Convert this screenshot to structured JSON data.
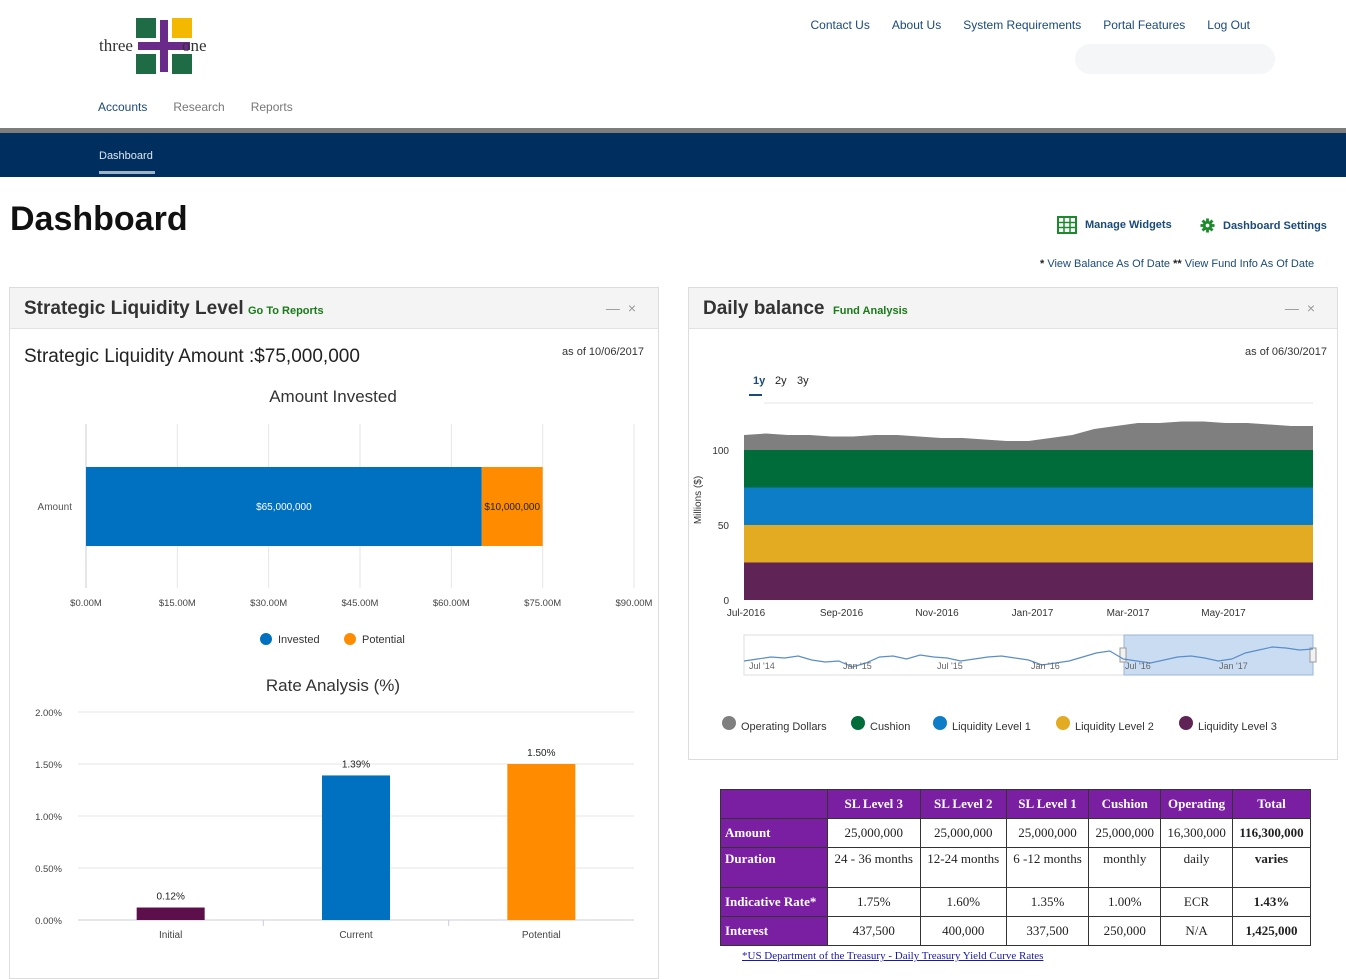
{
  "header": {
    "logo_left": "three",
    "logo_right": "one",
    "top_links": [
      "Contact Us",
      "About Us",
      "System Requirements",
      "Portal Features",
      "Log Out"
    ],
    "sub_nav": [
      "Accounts",
      "Research",
      "Reports"
    ],
    "tab": "Dashboard"
  },
  "page": {
    "title": "Dashboard",
    "manage_widgets": "Manage Widgets",
    "dashboard_settings": "Dashboard Settings",
    "view_balance_star": "*",
    "view_balance": "View Balance As Of Date",
    "view_fund_star": "**",
    "view_fund": "View Fund Info As Of Date"
  },
  "colors": {
    "navy": "#002f5f",
    "invested": "#0070c0",
    "potential": "#ff8c00",
    "initial": "#5c0f4a",
    "purple": "#7a1fa2",
    "operating": "#7f7f7f",
    "cushion": "#006c3a",
    "l1": "#0d7dc8",
    "l2": "#e3ab21",
    "l3": "#5f2455"
  },
  "left_panel": {
    "title": "Strategic Liquidity Level",
    "link": "Go To Reports",
    "amount_label": "Strategic Liquidity Amount :$75,000,000",
    "as_of": "as of 10/06/2017"
  },
  "right_panel": {
    "title": "Daily balance",
    "link": "Fund Analysis",
    "as_of": "as of 06/30/2017",
    "ranges": [
      "1y",
      "2y",
      "3y"
    ],
    "active_range": "1y"
  },
  "chart_data": [
    {
      "type": "bar",
      "orientation": "horizontal-stacked",
      "title": "Amount Invested",
      "categories": [
        "Amount"
      ],
      "series": [
        {
          "name": "Invested",
          "values": [
            65000000
          ],
          "label": "$65,000,000"
        },
        {
          "name": "Potential",
          "values": [
            10000000
          ],
          "label": "$10,000,000"
        }
      ],
      "xlim": [
        0,
        90000000
      ],
      "xticks": [
        "$0.00M",
        "$15.00M",
        "$30.00M",
        "$45.00M",
        "$60.00M",
        "$75.00M",
        "$90.00M"
      ],
      "legend": "bottom"
    },
    {
      "type": "bar",
      "title": "Rate Analysis (%)",
      "categories": [
        "Initial",
        "Current",
        "Potential"
      ],
      "values": [
        0.12,
        1.39,
        1.5
      ],
      "value_labels": [
        "0.12%",
        "1.39%",
        "1.50%"
      ],
      "ylim": [
        0,
        2.0
      ],
      "yticks": [
        "0.00%",
        "0.50%",
        "1.00%",
        "1.50%",
        "2.00%"
      ]
    },
    {
      "type": "area",
      "title": "",
      "ylabel": "Millions ($)",
      "ylim": [
        0,
        120
      ],
      "yticks": [
        "0",
        "50",
        "100"
      ],
      "xticks": [
        "Jul-2016",
        "Sep-2016",
        "Nov-2016",
        "Jan-2017",
        "Mar-2017",
        "May-2017"
      ],
      "navigator_ticks": [
        "Jul '14",
        "Jan '15",
        "Jul '15",
        "Jan '16",
        "Jul '16",
        "Jan '17"
      ],
      "series": [
        {
          "name": "Liquidity Level 3",
          "values": [
            25
          ]
        },
        {
          "name": "Liquidity Level 2",
          "values": [
            25
          ]
        },
        {
          "name": "Liquidity Level 1",
          "values": [
            25
          ]
        },
        {
          "name": "Cushion",
          "values": [
            25
          ]
        },
        {
          "name": "Operating Dollars",
          "values": [
            10,
            11,
            10,
            10,
            9,
            9,
            10,
            10,
            9,
            8,
            8,
            7,
            6,
            6,
            8,
            10,
            14,
            16,
            18,
            18,
            19,
            19,
            18,
            18,
            17,
            16,
            16
          ]
        }
      ],
      "legend": "bottom"
    }
  ],
  "table": {
    "headers": [
      "",
      "SL Level 3",
      "SL Level 2",
      "SL Level 1",
      "Cushion",
      "Operating",
      "Total"
    ],
    "rows": [
      {
        "label": "Amount",
        "cells": [
          "25,000,000",
          "25,000,000",
          "25,000,000",
          "25,000,000",
          "16,300,000",
          "116,300,000"
        ]
      },
      {
        "label": "Duration",
        "cells": [
          "24 - 36 months",
          "12-24 months",
          "6 -12 months",
          "monthly",
          "daily",
          "varies"
        ]
      },
      {
        "label": "Indicative Rate*",
        "cells": [
          "1.75%",
          "1.60%",
          "1.35%",
          "1.00%",
          "ECR",
          "1.43%"
        ]
      },
      {
        "label": "Interest",
        "cells": [
          "437,500",
          "400,000",
          "337,500",
          "250,000",
          "N/A",
          "1,425,000"
        ]
      }
    ],
    "note_star": "*",
    "note": "US Department of the Treasury - Daily Treasury Yield Curve Rates"
  }
}
